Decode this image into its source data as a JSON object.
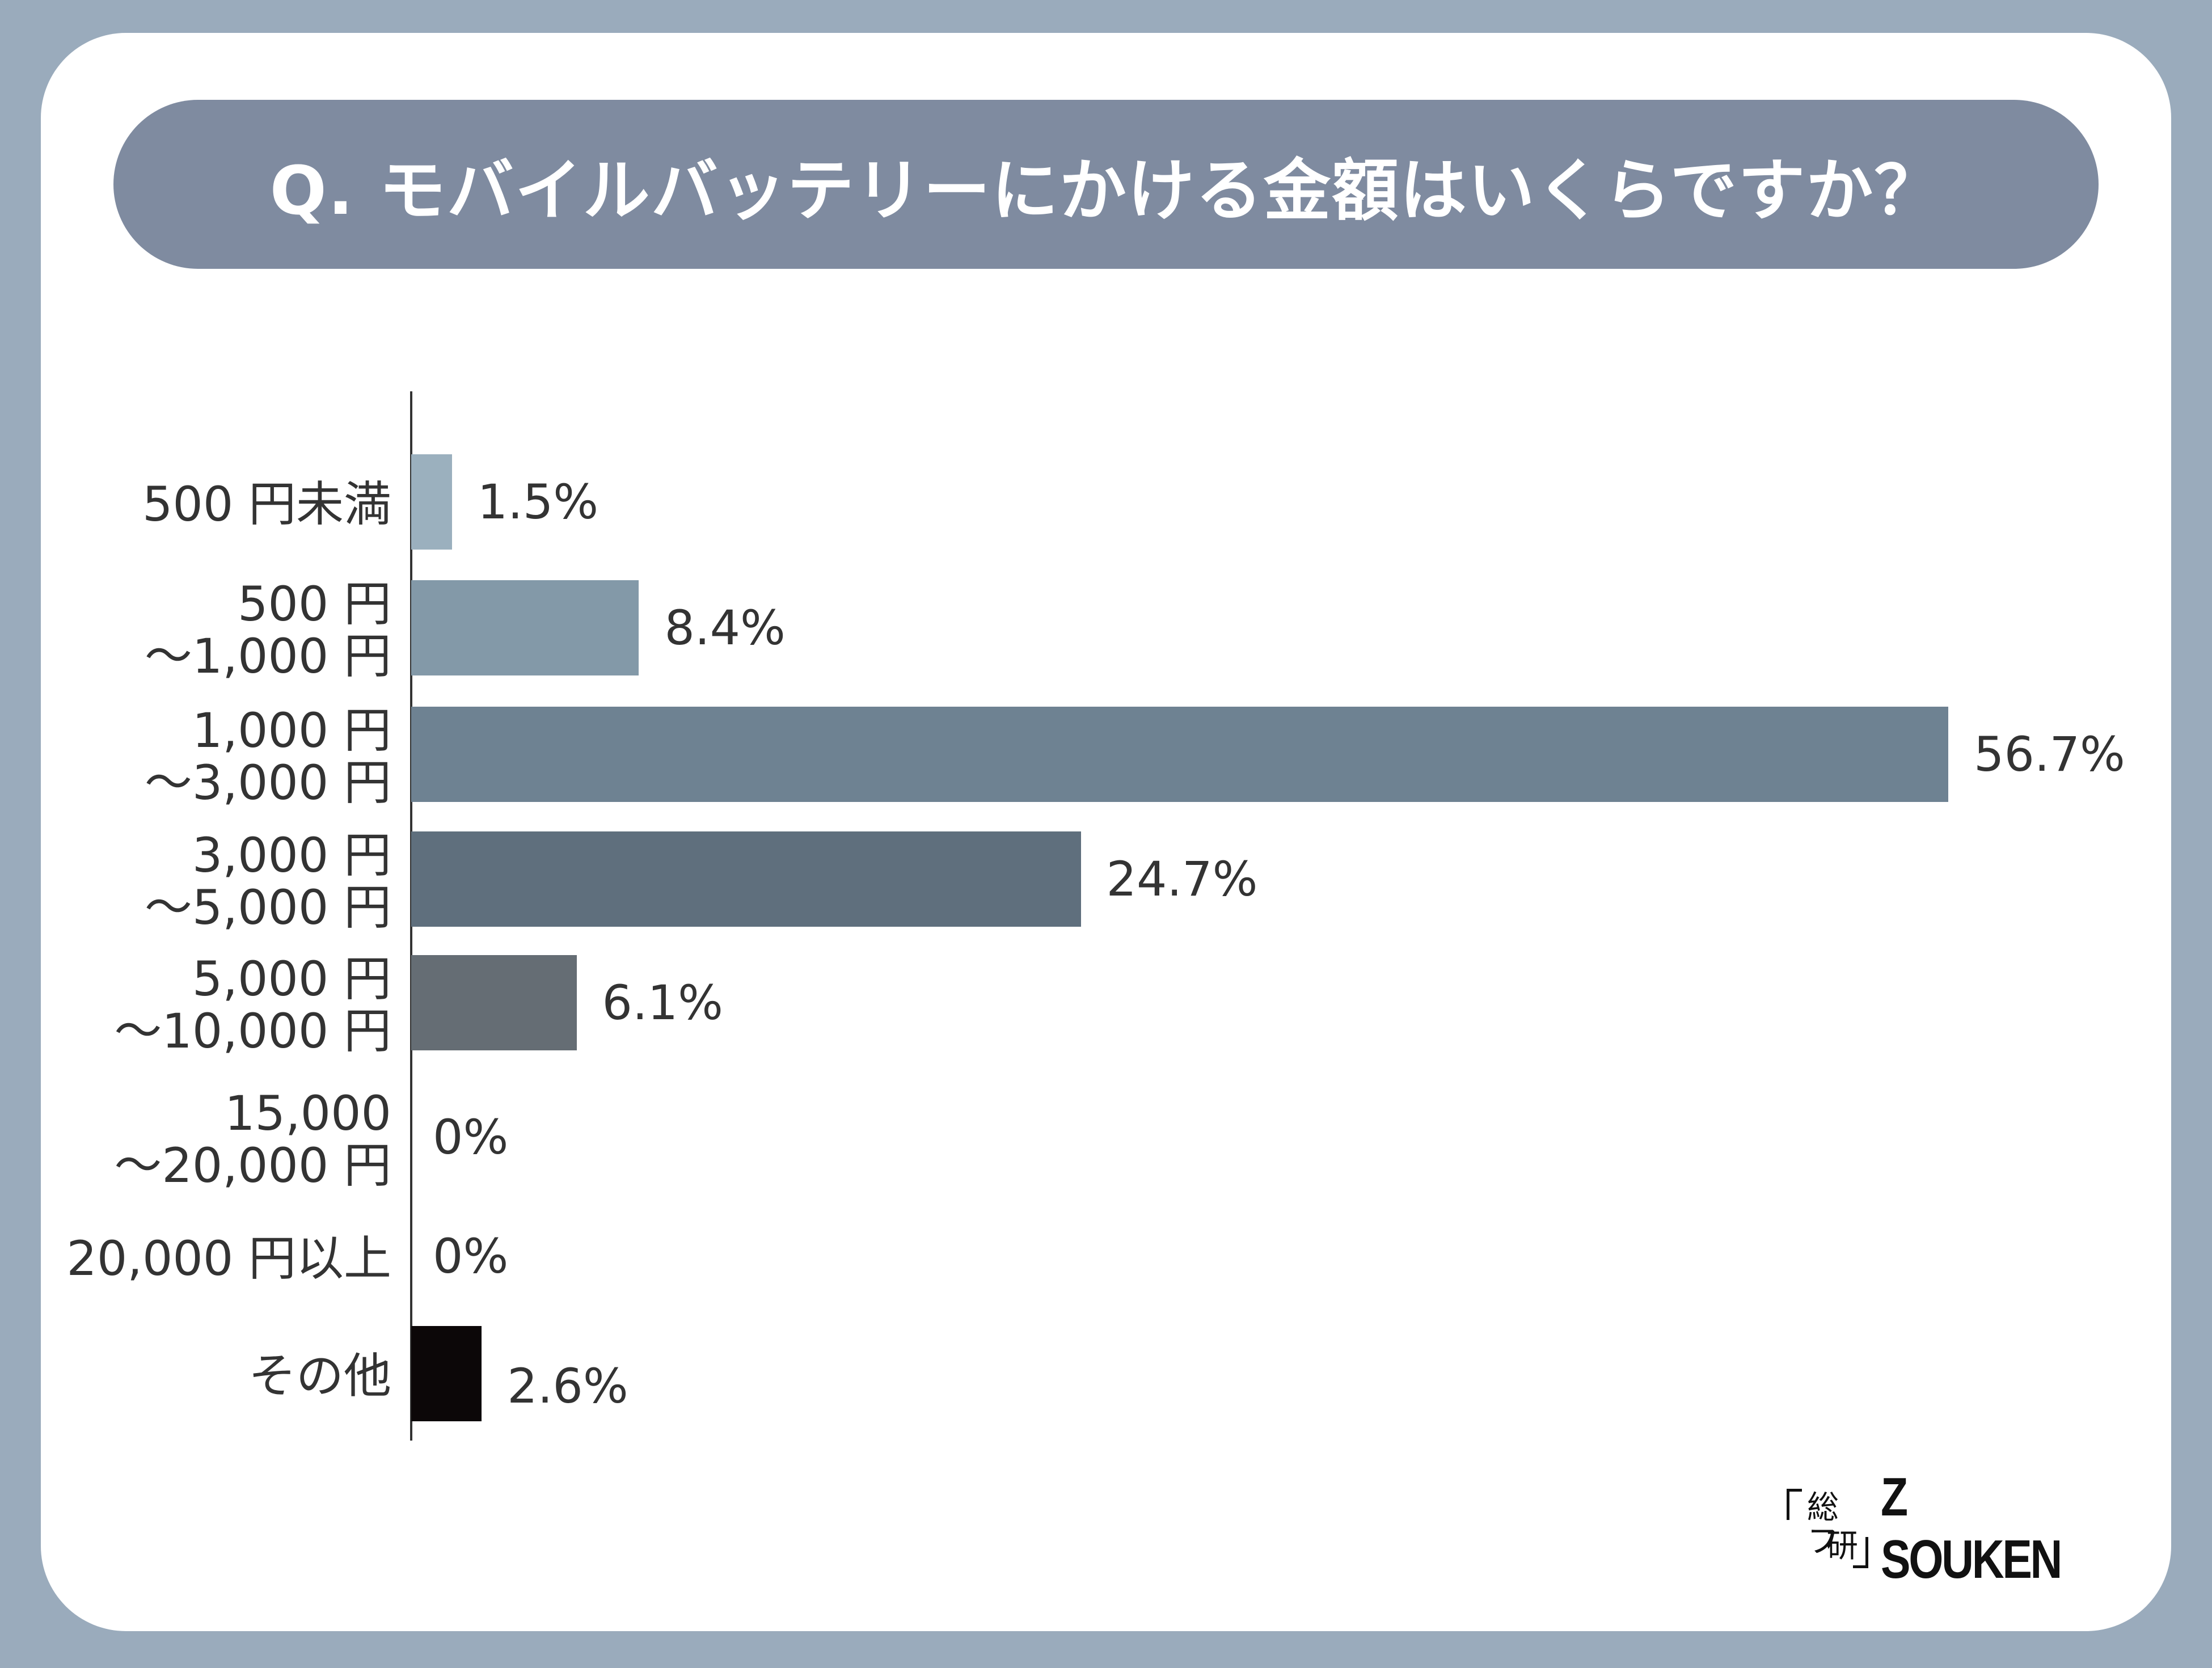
{
  "title": "Q. モバイルバッテリーにかける金額はいくらですか？",
  "chart_data": {
    "type": "bar",
    "orientation": "horizontal",
    "title": "Q. モバイルバッテリーにかける金額はいくらですか？",
    "xlabel": "",
    "ylabel": "",
    "xlim": [
      0,
      60
    ],
    "categories": [
      [
        "500 円未満"
      ],
      [
        "500 円",
        "～1,000 円"
      ],
      [
        "1,000 円",
        "～3,000 円"
      ],
      [
        "3,000 円",
        "～5,000 円"
      ],
      [
        "5,000 円",
        "～10,000 円"
      ],
      [
        "15,000",
        "～20,000 円"
      ],
      [
        "20,000 円以上"
      ],
      [
        "その他"
      ]
    ],
    "values": [
      1.5,
      8.4,
      56.7,
      24.7,
      6.1,
      0,
      0,
      2.6
    ],
    "value_labels": [
      "1.5%",
      "8.4%",
      "56.7%",
      "24.7%",
      "6.1%",
      "0%",
      "0%",
      "2.6%"
    ],
    "colors": [
      "#9bb0be",
      "#8399a8",
      "#6e8292",
      "#5f6f7d",
      "#656d74",
      "#656d74",
      "#656d74",
      "#0c0708"
    ]
  },
  "logo": {
    "jp_line1": "総フ",
    "jp_line2": "研",
    "en": "Z SOUKEN"
  }
}
